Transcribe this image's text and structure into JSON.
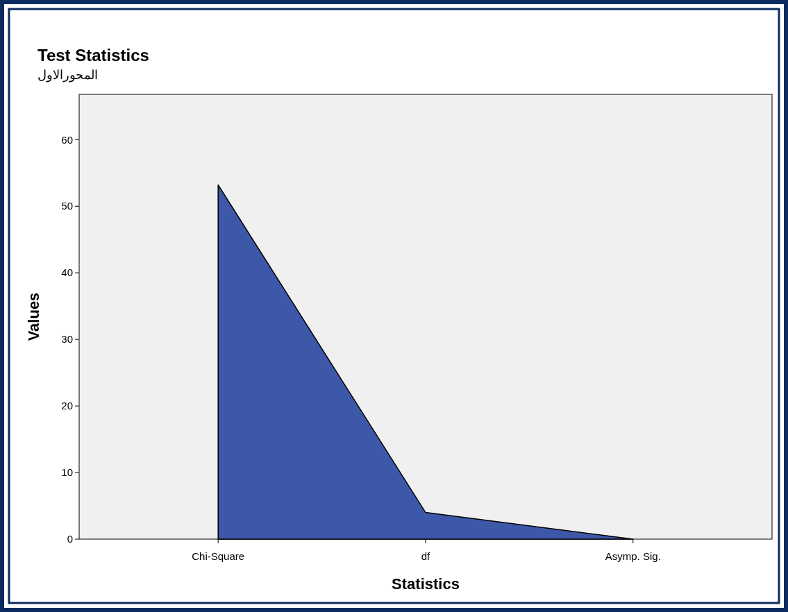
{
  "chart_data": {
    "type": "area",
    "title": "Test Statistics",
    "subtitle": "المحورالاول",
    "xlabel": "Statistics",
    "ylabel": "Values",
    "categories": [
      "Chi-Square",
      "df",
      "Asymp. Sig."
    ],
    "series": [
      {
        "color": "#3d58a8",
        "values": [
          53.2,
          4,
          0
        ]
      }
    ],
    "ylim": [
      0,
      66.8
    ],
    "yticks": [
      0,
      10,
      20,
      30,
      40,
      50,
      60
    ]
  }
}
